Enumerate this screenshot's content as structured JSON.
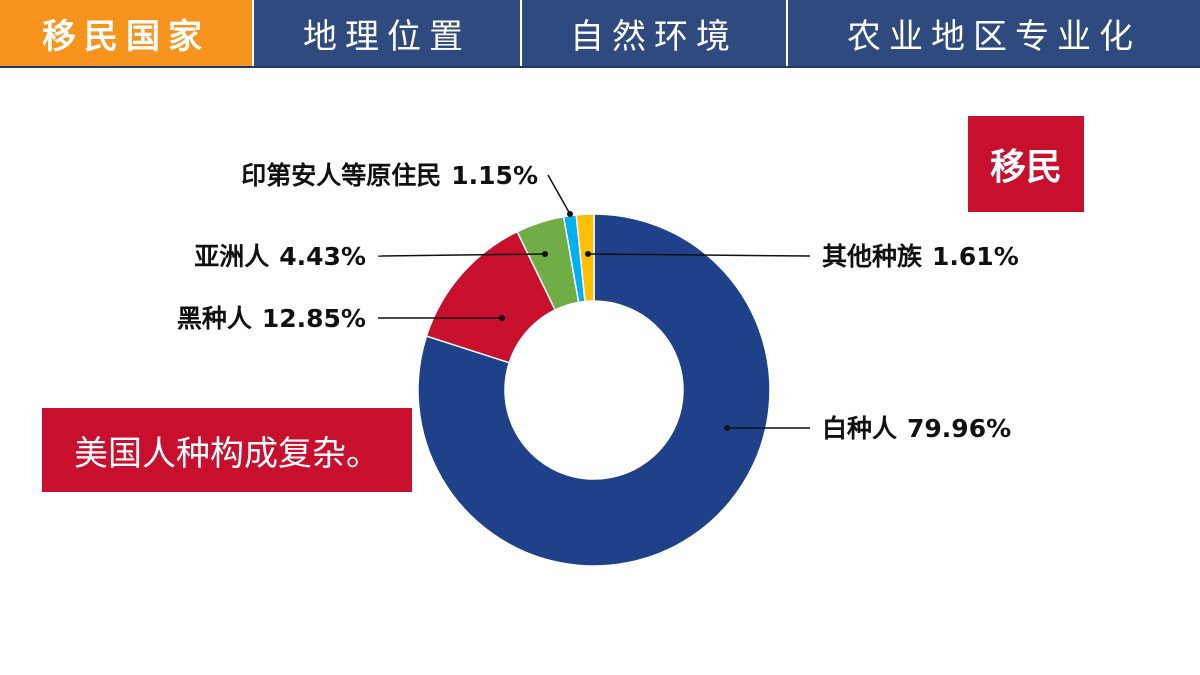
{
  "nav": {
    "tabs": [
      "移民国家",
      "地理位置",
      "自然环境",
      "农业地区专业化"
    ]
  },
  "badge": "移民",
  "note": "美国人种构成复杂。",
  "chart_data": {
    "type": "pie",
    "donut": true,
    "categories": [
      "白种人",
      "黑种人",
      "亚洲人",
      "印第安人等原住民",
      "其他种族"
    ],
    "values": [
      79.96,
      12.85,
      4.43,
      1.15,
      1.61
    ],
    "value_labels": [
      "79.96%",
      "12.85%",
      "4.43%",
      "1.15%",
      "1.61%"
    ],
    "colors": [
      "#1f4189",
      "#c8102e",
      "#70ad47",
      "#00b0f0",
      "#ffc000"
    ]
  }
}
